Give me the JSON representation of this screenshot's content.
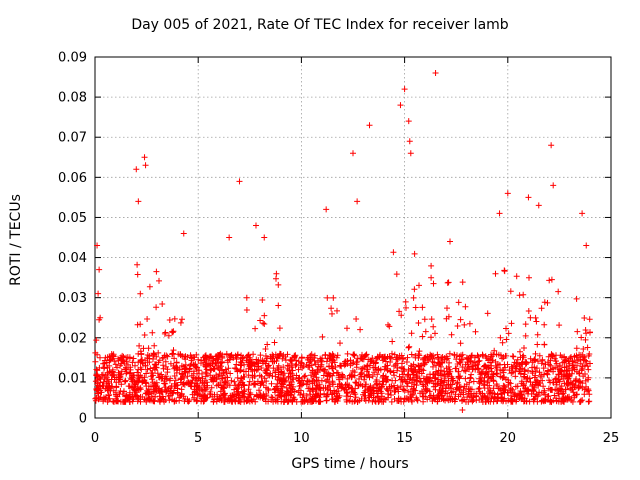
{
  "chart_data": {
    "type": "scatter",
    "title": "Day 005 of 2021, Rate Of TEC Index for receiver lamb",
    "xlabel": "GPS time / hours",
    "ylabel": "ROTI / TECUs",
    "xlim": [
      0,
      25
    ],
    "ylim": [
      0,
      0.09
    ],
    "x_ticks": [
      "0",
      "5",
      "10",
      "15",
      "20",
      "25"
    ],
    "y_ticks": [
      "0",
      "0.01",
      "0.02",
      "0.03",
      "0.04",
      "0.05",
      "0.06",
      "0.07",
      "0.08",
      "0.09"
    ],
    "grid": true,
    "marker": "+",
    "series_color": "#ff0000",
    "series": [
      {
        "name": "ROTI",
        "x": [
          0.1,
          0.2,
          0.15,
          0.25,
          2.0,
          2.4,
          2.45,
          2.1,
          4.3,
          6.5,
          7.0,
          7.8,
          8.2,
          11.2,
          12.5,
          12.7,
          13.3,
          14.8,
          15.0,
          15.2,
          15.25,
          15.3,
          16.5,
          17.2,
          17.8,
          19.6,
          20.0,
          21.0,
          21.5,
          22.1,
          22.2,
          23.6,
          23.8
        ],
        "y": [
          0.043,
          0.037,
          0.031,
          0.025,
          0.062,
          0.065,
          0.063,
          0.054,
          0.046,
          0.045,
          0.059,
          0.048,
          0.045,
          0.052,
          0.066,
          0.054,
          0.073,
          0.078,
          0.082,
          0.074,
          0.069,
          0.066,
          0.086,
          0.044,
          0.002,
          0.051,
          0.056,
          0.055,
          0.053,
          0.068,
          0.058,
          0.051,
          0.043
        ]
      }
    ],
    "background": {
      "description_x_range": [
        0,
        24
      ],
      "baseline_range": [
        0.004,
        0.016
      ]
    }
  }
}
